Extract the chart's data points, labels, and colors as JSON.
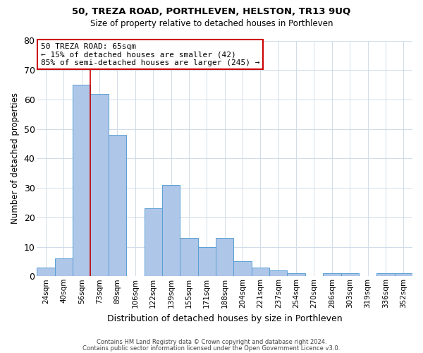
{
  "title": "50, TREZA ROAD, PORTHLEVEN, HELSTON, TR13 9UQ",
  "subtitle": "Size of property relative to detached houses in Porthleven",
  "xlabel": "Distribution of detached houses by size in Porthleven",
  "ylabel": "Number of detached properties",
  "bar_labels": [
    "24sqm",
    "40sqm",
    "56sqm",
    "73sqm",
    "89sqm",
    "106sqm",
    "122sqm",
    "139sqm",
    "155sqm",
    "171sqm",
    "188sqm",
    "204sqm",
    "221sqm",
    "237sqm",
    "254sqm",
    "270sqm",
    "286sqm",
    "303sqm",
    "319sqm",
    "336sqm",
    "352sqm"
  ],
  "bar_values": [
    3,
    6,
    65,
    62,
    48,
    0,
    23,
    31,
    13,
    10,
    13,
    5,
    3,
    2,
    1,
    0,
    1,
    1,
    0,
    1,
    1
  ],
  "bar_color": "#aec6e8",
  "bar_edgecolor": "#5a9fd4",
  "ylim": [
    0,
    80
  ],
  "yticks": [
    0,
    10,
    20,
    30,
    40,
    50,
    60,
    70,
    80
  ],
  "vline_x_idx": 2,
  "vline_color": "#cc0000",
  "annotation_text": "50 TREZA ROAD: 65sqm\n← 15% of detached houses are smaller (42)\n85% of semi-detached houses are larger (245) →",
  "annotation_box_color": "#ffffff",
  "annotation_box_edgecolor": "#cc0000",
  "footer1": "Contains HM Land Registry data © Crown copyright and database right 2024.",
  "footer2": "Contains public sector information licensed under the Open Government Licence v3.0.",
  "background_color": "#ffffff",
  "grid_color": "#d0dce8"
}
